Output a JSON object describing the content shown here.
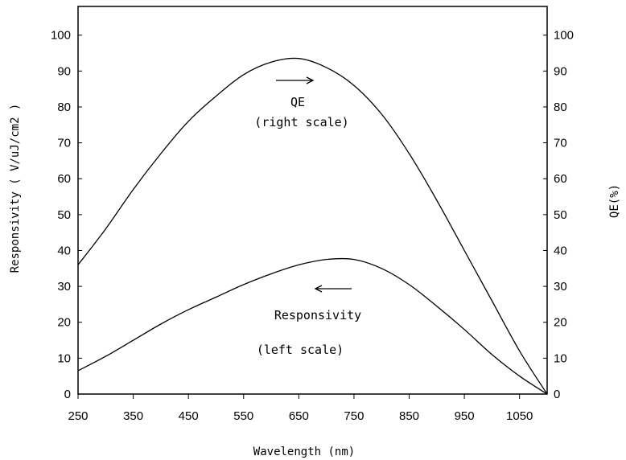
{
  "chart_data": {
    "type": "line",
    "xlabel": "Wavelength (nm)",
    "ylabel_left": "Responsivity ( V/uJ/cm2 )",
    "ylabel_right": "QE(%)",
    "x_ticks": [
      250,
      350,
      450,
      550,
      650,
      750,
      850,
      950,
      1050
    ],
    "y_ticks_left": [
      0,
      10,
      20,
      30,
      40,
      50,
      60,
      70,
      80,
      90,
      100
    ],
    "y_ticks_right": [
      0,
      10,
      20,
      30,
      40,
      50,
      60,
      70,
      80,
      90,
      100
    ],
    "xlim": [
      250,
      1100
    ],
    "ylim_left": [
      0,
      108
    ],
    "ylim_right": [
      0,
      108
    ],
    "grid": false,
    "series": [
      {
        "name": "QE",
        "axis": "right",
        "x": [
          250,
          300,
          350,
          400,
          450,
          500,
          550,
          600,
          650,
          700,
          750,
          800,
          850,
          900,
          950,
          1000,
          1050,
          1100
        ],
        "values": [
          36,
          46,
          57,
          67,
          76,
          83,
          89,
          92.5,
          93.5,
          91,
          86,
          78,
          67,
          54,
          40,
          26,
          12,
          0
        ]
      },
      {
        "name": "Responsivity",
        "axis": "left",
        "x": [
          250,
          300,
          350,
          400,
          450,
          500,
          550,
          600,
          650,
          700,
          750,
          800,
          850,
          900,
          950,
          1000,
          1050,
          1100
        ],
        "values": [
          6.5,
          10.5,
          15,
          19.5,
          23.5,
          27,
          30.5,
          33.5,
          36,
          37.5,
          37.5,
          35,
          30.5,
          24.5,
          18,
          11,
          5,
          0
        ]
      }
    ],
    "annotations": {
      "qe_line1": "QE",
      "qe_line2": "(right scale)",
      "resp_line1": "Responsivity",
      "resp_line2": "(left scale)"
    }
  }
}
